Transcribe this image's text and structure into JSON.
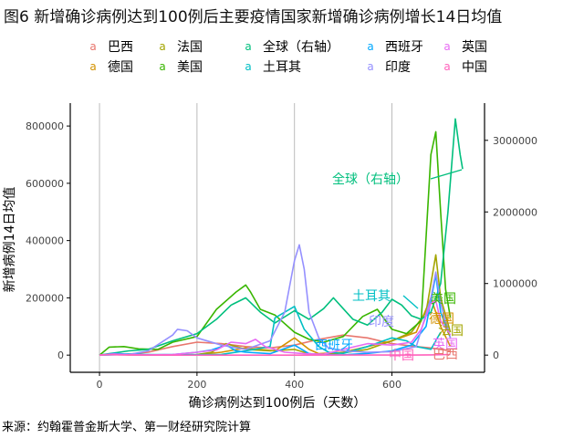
{
  "title": "图6 新增确诊病例达到100例后主要疫情国家新增确诊病例增长14日均值",
  "source": "来源：约翰霍普金斯大学、第一财经研究院计算",
  "legend_key_glyph": "a",
  "legend": [
    [
      {
        "name": "巴西",
        "color": "#e8766d"
      },
      {
        "name": "法国",
        "color": "#a3a500"
      },
      {
        "name": "全球（右轴）",
        "color": "#00bf7d"
      },
      {
        "name": "西班牙",
        "color": "#00a9ff"
      },
      {
        "name": "英国",
        "color": "#e76bf3"
      }
    ],
    [
      {
        "name": "德国",
        "color": "#d39200"
      },
      {
        "name": "美国",
        "color": "#39b600"
      },
      {
        "name": "土耳其",
        "color": "#00bfc4"
      },
      {
        "name": "印度",
        "color": "#9590ff"
      },
      {
        "name": "中国",
        "color": "#ff62bc"
      }
    ]
  ],
  "chart_data": {
    "type": "line",
    "title": "图6 新增确诊病例达到100例后主要疫情国家新增确诊病例增长14日均值",
    "xlabel": "确诊病例达到100例后（天数）",
    "ylabel": "新增病例14日均值",
    "y2label": "",
    "xlim": [
      -60,
      790
    ],
    "ylim": [
      -60000,
      880000
    ],
    "y2lim": [
      -240000,
      3520000
    ],
    "xticks": [
      0,
      200,
      400,
      600
    ],
    "yticks": [
      0,
      200000,
      400000,
      600000,
      800000
    ],
    "y2ticks": [
      0,
      1000000,
      2000000,
      3000000
    ],
    "grid": "vertical",
    "legend_position": "top",
    "series": [
      {
        "name": "巴西",
        "color": "#e8766d",
        "axis": "left",
        "x": [
          0,
          50,
          100,
          150,
          200,
          250,
          300,
          350,
          400,
          450,
          500,
          550,
          600,
          650,
          680,
          700,
          720
        ],
        "y": [
          0,
          2000,
          10000,
          30000,
          45000,
          40000,
          30000,
          25000,
          35000,
          55000,
          70000,
          60000,
          40000,
          30000,
          25000,
          20000,
          15000
        ]
      },
      {
        "name": "德国",
        "color": "#d39200",
        "axis": "left",
        "x": [
          0,
          30,
          60,
          100,
          150,
          200,
          250,
          300,
          330,
          360,
          400,
          430,
          450,
          500,
          550,
          600,
          650,
          680,
          700,
          720
        ],
        "y": [
          0,
          4000,
          1000,
          500,
          800,
          1500,
          10000,
          25000,
          20000,
          15000,
          60000,
          20000,
          5000,
          10000,
          30000,
          50000,
          80000,
          200000,
          100000,
          30000
        ]
      },
      {
        "name": "法国",
        "color": "#a3a500",
        "axis": "left",
        "x": [
          0,
          30,
          60,
          100,
          150,
          200,
          230,
          260,
          300,
          350,
          400,
          430,
          460,
          500,
          550,
          600,
          640,
          670,
          690,
          700,
          720
        ],
        "y": [
          0,
          4000,
          1500,
          500,
          800,
          2000,
          10000,
          40000,
          20000,
          15000,
          20000,
          5000,
          2000,
          8000,
          20000,
          50000,
          80000,
          150000,
          350000,
          200000,
          80000
        ]
      },
      {
        "name": "美国",
        "color": "#39b600",
        "axis": "left",
        "x": [
          0,
          20,
          50,
          80,
          120,
          150,
          200,
          240,
          280,
          300,
          310,
          330,
          360,
          400,
          430,
          460,
          500,
          540,
          570,
          600,
          630,
          660,
          680,
          690,
          700,
          710,
          720
        ],
        "y": [
          0,
          28000,
          30000,
          22000,
          20000,
          45000,
          65000,
          160000,
          220000,
          245000,
          220000,
          160000,
          140000,
          80000,
          55000,
          45000,
          65000,
          135000,
          160000,
          90000,
          75000,
          120000,
          700000,
          780000,
          500000,
          230000,
          130000
        ]
      },
      {
        "name": "全球（右轴）",
        "color": "#00bf7d",
        "axis": "right",
        "x": [
          0,
          20,
          60,
          100,
          150,
          200,
          240,
          270,
          300,
          330,
          360,
          400,
          430,
          460,
          480,
          500,
          520,
          550,
          580,
          600,
          620,
          640,
          660,
          680,
          700,
          715,
          730,
          740,
          745
        ],
        "y": [
          0,
          20000,
          60000,
          80000,
          200000,
          300000,
          500000,
          700000,
          800000,
          600000,
          450000,
          620000,
          500000,
          650000,
          800000,
          650000,
          500000,
          420000,
          600000,
          780000,
          700000,
          550000,
          500000,
          600000,
          1000000,
          2000000,
          3300000,
          2800000,
          2600000
        ]
      },
      {
        "name": "土耳其",
        "color": "#00bfc4",
        "axis": "left",
        "x": [
          0,
          60,
          100,
          150,
          200,
          250,
          300,
          350,
          360,
          400,
          420,
          450,
          470,
          500,
          550,
          600,
          630,
          650,
          680,
          700
        ],
        "y": [
          0,
          4000,
          2000,
          1500,
          1500,
          2500,
          15000,
          30000,
          130000,
          170000,
          90000,
          30000,
          10000,
          6000,
          30000,
          60000,
          50000,
          30000,
          20000,
          80000
        ]
      },
      {
        "name": "西班牙",
        "color": "#00a9ff",
        "axis": "left",
        "x": [
          0,
          30,
          60,
          100,
          150,
          200,
          230,
          260,
          280,
          300,
          350,
          400,
          430,
          450,
          500,
          550,
          600,
          640,
          670,
          690,
          700,
          720
        ],
        "y": [
          0,
          6000,
          3000,
          1000,
          2000,
          10000,
          18000,
          35000,
          15000,
          10000,
          5000,
          35000,
          5000,
          2000,
          1000,
          6000,
          15000,
          35000,
          100000,
          280000,
          150000,
          60000
        ]
      },
      {
        "name": "印度",
        "color": "#9590ff",
        "axis": "left",
        "x": [
          0,
          20,
          60,
          100,
          150,
          160,
          180,
          200,
          250,
          300,
          350,
          380,
          400,
          410,
          420,
          430,
          450,
          470,
          500,
          550,
          600,
          650,
          680,
          690,
          700,
          720
        ],
        "y": [
          0,
          500,
          2000,
          15000,
          70000,
          90000,
          85000,
          60000,
          35000,
          20000,
          50000,
          150000,
          330000,
          385000,
          300000,
          150000,
          60000,
          25000,
          15000,
          10000,
          12000,
          30000,
          200000,
          290000,
          180000,
          60000
        ]
      },
      {
        "name": "英国",
        "color": "#e76bf3",
        "axis": "left",
        "x": [
          0,
          30,
          60,
          100,
          150,
          200,
          240,
          270,
          300,
          320,
          340,
          380,
          420,
          460,
          500,
          550,
          600,
          640,
          660,
          680,
          690,
          700,
          720
        ],
        "y": [
          0,
          4000,
          1500,
          1000,
          2000,
          10000,
          18000,
          45000,
          40000,
          55000,
          30000,
          10000,
          5000,
          3000,
          20000,
          40000,
          35000,
          45000,
          90000,
          180000,
          190000,
          120000,
          70000
        ]
      },
      {
        "name": "中国",
        "color": "#ff62bc",
        "axis": "left",
        "x": [
          0,
          20,
          40,
          60,
          100,
          200,
          300,
          400,
          500,
          600,
          650,
          680,
          700,
          720
        ],
        "y": [
          0,
          2500,
          1000,
          200,
          50,
          50,
          50,
          50,
          100,
          100,
          200,
          800,
          1500,
          2000
        ]
      }
    ],
    "annotations": [
      {
        "text": "全球（右轴）",
        "color": "#00bf7d"
      },
      {
        "text": "土耳其",
        "color": "#00bfc4"
      },
      {
        "text": "美国",
        "color": "#39b600"
      },
      {
        "text": "印度",
        "color": "#9590ff"
      },
      {
        "text": "西班牙",
        "color": "#00a9ff"
      },
      {
        "text": "法国",
        "color": "#a3a500"
      },
      {
        "text": "英国",
        "color": "#e76bf3"
      },
      {
        "text": "德国",
        "color": "#d39200"
      },
      {
        "text": "中国",
        "color": "#ff62bc"
      },
      {
        "text": "巴西",
        "color": "#e8766d"
      }
    ]
  }
}
